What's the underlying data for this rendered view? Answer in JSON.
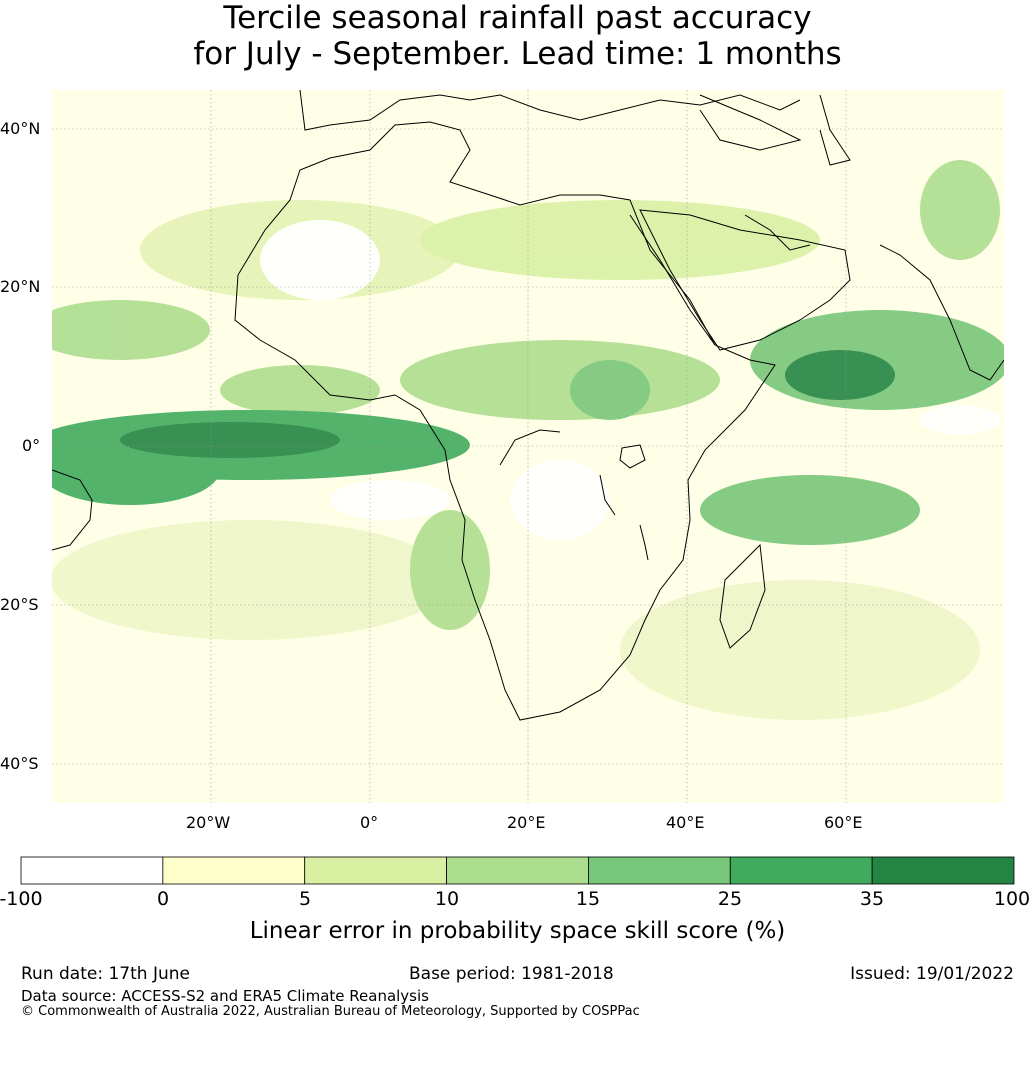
{
  "title": {
    "line1": "Tercile seasonal rainfall past accuracy",
    "line2": "for July - September. Lead time: 1 months"
  },
  "map": {
    "lat_labels": [
      "40°N",
      "20°N",
      "0°",
      "20°S",
      "40°S"
    ],
    "lon_labels": [
      "20°W",
      "0°",
      "20°E",
      "40°E",
      "60°E"
    ],
    "ocean_color": "#ffffe8",
    "coast_color": "#000000"
  },
  "colorbar": {
    "ticks": [
      "-100",
      "0",
      "5",
      "10",
      "15",
      "25",
      "35",
      "100"
    ],
    "colors": [
      "#ffffff",
      "#ffffcc",
      "#d9f0a3",
      "#addd8e",
      "#78c679",
      "#41ab5d",
      "#238443"
    ],
    "label": "Linear error in probability space skill score (%)"
  },
  "footer": {
    "run_date": "Run date: 17th June",
    "base_period": "Base period: 1981-2018",
    "issued": "Issued: 19/01/2022",
    "data_source": "Data source: ACCESS-S2 and ERA5 Climate Reanalysis",
    "copyright": "© Commonwealth of Australia 2022, Australian Bureau of Meteorology, Supported by COSPPac"
  }
}
